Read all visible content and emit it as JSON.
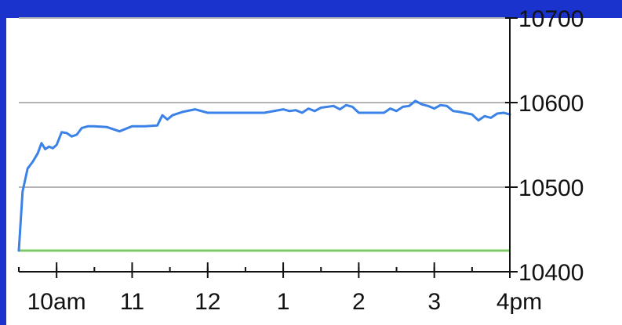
{
  "colors": {
    "frame": "#1a33cc",
    "plot_background": "#ffffff",
    "gridline": "#b4b4b4",
    "price_line": "#3b82e8",
    "reference_line": "#7cc86a",
    "axis_text": "#111111"
  },
  "chart_data": {
    "type": "line",
    "title": "",
    "xlabel": "",
    "ylabel": "",
    "ylim": [
      10400,
      10700
    ],
    "xlim": [
      "9:30",
      "16:00"
    ],
    "grid": true,
    "y_axis_position": "right",
    "x_tick_labels": [
      {
        "t": "10:00",
        "label": "10am"
      },
      {
        "t": "11:00",
        "label": "11"
      },
      {
        "t": "12:00",
        "label": "12"
      },
      {
        "t": "13:00",
        "label": "1"
      },
      {
        "t": "14:00",
        "label": "2"
      },
      {
        "t": "15:00",
        "label": "3"
      },
      {
        "t": "16:00",
        "label": "4pm"
      }
    ],
    "x_minor_ticks": [
      "9:30",
      "10:00",
      "10:30",
      "11:00",
      "11:30",
      "12:00",
      "12:30",
      "13:00",
      "13:30",
      "14:00",
      "14:30",
      "15:00",
      "15:30",
      "16:00"
    ],
    "y_ticks": [
      10400,
      10500,
      10600,
      10700
    ],
    "reference_line": {
      "value": 10425
    },
    "series": [
      {
        "x": [
          "9:30",
          "9:33",
          "9:37",
          "9:41",
          "9:45",
          "9:48",
          "9:51",
          "9:54",
          "9:57",
          "10:00",
          "10:04",
          "10:08",
          "10:12",
          "10:16",
          "10:20",
          "10:25",
          "10:30",
          "10:40",
          "10:50",
          "11:00",
          "11:10",
          "11:20",
          "11:24",
          "11:28",
          "11:32",
          "11:40",
          "11:50",
          "12:00",
          "12:10",
          "12:30",
          "12:45",
          "13:00",
          "13:05",
          "13:10",
          "13:15",
          "13:20",
          "13:25",
          "13:30",
          "13:40",
          "13:45",
          "13:50",
          "13:55",
          "14:00",
          "14:10",
          "14:20",
          "14:25",
          "14:30",
          "14:35",
          "14:40",
          "14:45",
          "14:50",
          "14:55",
          "15:00",
          "15:05",
          "15:10",
          "15:15",
          "15:20",
          "15:30",
          "15:35",
          "15:40",
          "15:45",
          "15:50",
          "15:55",
          "16:00"
        ],
        "values": [
          10425,
          10495,
          10522,
          10530,
          10540,
          10552,
          10545,
          10548,
          10546,
          10550,
          10565,
          10564,
          10560,
          10562,
          10570,
          10572,
          10572,
          10571,
          10566,
          10572,
          10572,
          10573,
          10585,
          10580,
          10585,
          10589,
          10592,
          10588,
          10588,
          10588,
          10588,
          10592,
          10590,
          10591,
          10588,
          10593,
          10590,
          10594,
          10596,
          10592,
          10597,
          10595,
          10588,
          10588,
          10588,
          10593,
          10590,
          10595,
          10596,
          10602,
          10598,
          10596,
          10593,
          10597,
          10596,
          10590,
          10589,
          10586,
          10579,
          10584,
          10582,
          10587,
          10588,
          10586
        ]
      }
    ]
  }
}
